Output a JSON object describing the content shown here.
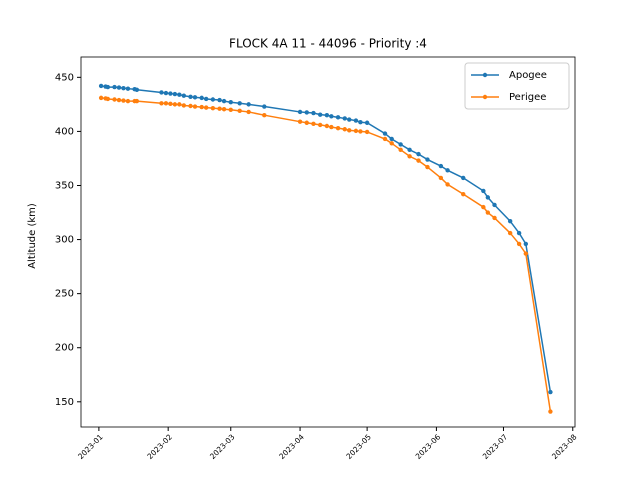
{
  "chart_data": {
    "type": "line",
    "title": "FLOCK 4A 11 - 44096 - Priority :4",
    "y_label": "Altitude (km)",
    "x": [
      19359,
      19361,
      19362,
      19365,
      19367,
      19369,
      19371,
      19374,
      19375,
      19386,
      19388,
      19390,
      19392,
      19394,
      19396,
      19399,
      19401,
      19404,
      19406,
      19409,
      19412,
      19414,
      19417,
      19421,
      19425,
      19432,
      19448,
      19451,
      19454,
      19457,
      19460,
      19462,
      19465,
      19468,
      19470,
      19473,
      19475,
      19478,
      19486,
      19489,
      19493,
      19497,
      19501,
      19505,
      19511,
      19514,
      19521,
      19530,
      19532,
      19535,
      19542,
      19546,
      19549,
      19560
    ],
    "series": [
      {
        "name": "Apogee",
        "color": "#1f77b4",
        "values": [
          442,
          441.5,
          441,
          441,
          440.5,
          440,
          439.5,
          439,
          438.5,
          436,
          435.5,
          435,
          434.5,
          434,
          433,
          432,
          431.5,
          431,
          430,
          429.5,
          429,
          428,
          427,
          426,
          425,
          423,
          418,
          417.5,
          417,
          415.5,
          415,
          414,
          413,
          412,
          411,
          410,
          408.5,
          408,
          398,
          393,
          388,
          383,
          379,
          374,
          368,
          364,
          357,
          345,
          339,
          332,
          317,
          306,
          296,
          159
        ]
      },
      {
        "name": "Perigee",
        "color": "#ff7f0e",
        "values": [
          431,
          430.5,
          430,
          429.5,
          429,
          428.5,
          428,
          428,
          428,
          426,
          426,
          425.5,
          425,
          425,
          424,
          423.5,
          423,
          422.5,
          422,
          421.5,
          421,
          420.5,
          420,
          419,
          418,
          415,
          409,
          408,
          407,
          406,
          405,
          404,
          403,
          402,
          401,
          400.5,
          400,
          399.5,
          393,
          389,
          383,
          377,
          373,
          367,
          357,
          351,
          342,
          330,
          325,
          320,
          306,
          296,
          287,
          141
        ]
      }
    ],
    "xlim": [
      19350,
      19571
    ],
    "xticks": [
      {
        "value": 19358,
        "label": "2023-01"
      },
      {
        "value": 19389,
        "label": "2023-02"
      },
      {
        "value": 19417,
        "label": "2023-03"
      },
      {
        "value": 19448,
        "label": "2023-04"
      },
      {
        "value": 19478,
        "label": "2023-05"
      },
      {
        "value": 19509,
        "label": "2023-06"
      },
      {
        "value": 19539,
        "label": "2023-07"
      },
      {
        "value": 19570,
        "label": "2023-08"
      }
    ],
    "ylim": [
      126.7,
      468.8
    ],
    "yticks": [
      150,
      200,
      250,
      300,
      350,
      400,
      450
    ],
    "legend": "upper right"
  }
}
